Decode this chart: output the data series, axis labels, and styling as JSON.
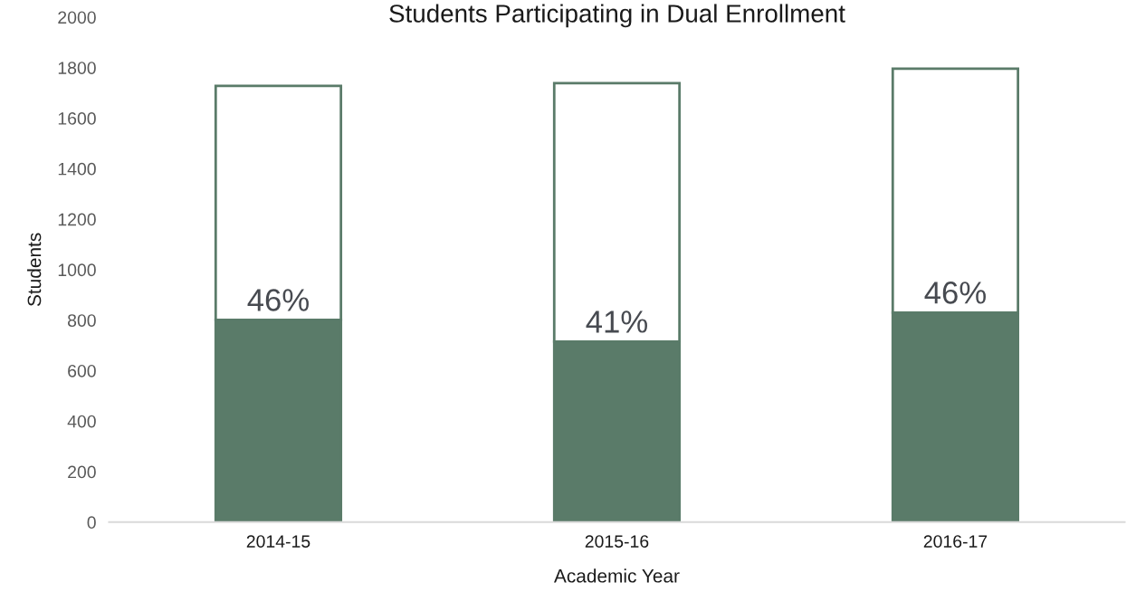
{
  "chart_data": {
    "type": "bar",
    "title": "Students Participating in Dual Enrollment",
    "xlabel": "Academic Year",
    "ylabel": "Students",
    "categories": [
      "2014-15",
      "2015-16",
      "2016-17"
    ],
    "stacked": true,
    "series": [
      {
        "color": "#5a7b69",
        "values": [
          801,
          715,
          830
        ]
      },
      {
        "color": "#ffffff",
        "values": [
          927,
          1024,
          966
        ]
      }
    ],
    "annotations": [
      {
        "text": "46%",
        "x": "2014-15",
        "y": 801
      },
      {
        "text": "41%",
        "x": "2015-16",
        "y": 715
      },
      {
        "text": "46%",
        "x": "2016-17",
        "y": 830
      }
    ],
    "ylim": [
      0,
      2000
    ],
    "yticks": [
      0,
      200,
      400,
      600,
      800,
      1000,
      1200,
      1400,
      1600,
      1800,
      2000
    ],
    "grid": false,
    "legend": false
  }
}
